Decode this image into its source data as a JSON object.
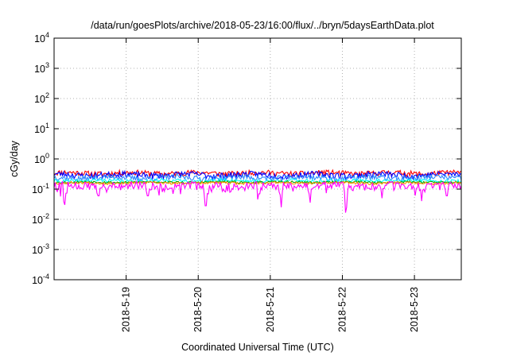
{
  "chart_data": {
    "type": "line",
    "title": "/data/run/goesPlots/archive/2018-05-23/16:00/flux/../bryn/5daysEarthData.plot",
    "xlabel": "Coordinated Universal Time (UTC)",
    "ylabel": "cGy/day",
    "yscale": "log",
    "ylim": [
      0.0001,
      10000
    ],
    "y_ticks": [
      {
        "value": 0.0001,
        "base": "10",
        "exp": "-4"
      },
      {
        "value": 0.001,
        "base": "10",
        "exp": "-3"
      },
      {
        "value": 0.01,
        "base": "10",
        "exp": "-2"
      },
      {
        "value": 0.1,
        "base": "10",
        "exp": "-1"
      },
      {
        "value": 1,
        "base": "10",
        "exp": "0"
      },
      {
        "value": 10,
        "base": "10",
        "exp": "1"
      },
      {
        "value": 100,
        "base": "10",
        "exp": "2"
      },
      {
        "value": 1000,
        "base": "10",
        "exp": "3"
      },
      {
        "value": 10000,
        "base": "10",
        "exp": "4"
      }
    ],
    "x_range_days": [
      18.0,
      23.65
    ],
    "x_ticks": [
      {
        "day": 19,
        "label": "2018-5-19"
      },
      {
        "day": 20,
        "label": "2018-5-20"
      },
      {
        "day": 21,
        "label": "2018-5-21"
      },
      {
        "day": 22,
        "label": "2018-5-22"
      },
      {
        "day": 23,
        "label": "2018-5-23"
      }
    ],
    "grid": true,
    "legend": "none",
    "series": [
      {
        "color": "#ff0000",
        "baseline": 0.34,
        "spread": 0.07,
        "seed": 11
      },
      {
        "color": "#0000ff",
        "baseline": 0.3,
        "spread": 0.07,
        "seed": 23
      },
      {
        "color": "#2e8bff",
        "baseline": 0.24,
        "spread": 0.05,
        "seed": 37
      },
      {
        "color": "#00ffff",
        "baseline": 0.19,
        "spread": 0.025,
        "seed": 41
      },
      {
        "color": "#00aa00",
        "baseline": 0.17,
        "spread": 0.015,
        "seed": 53
      },
      {
        "color": "#ff8c00",
        "baseline": 0.16,
        "spread": 0.015,
        "seed": 67
      },
      {
        "color": "#ff00ff",
        "baseline": 0.13,
        "spread": 0.04,
        "seed": 79,
        "dips": [
          {
            "day": 18.15,
            "value": 0.03
          },
          {
            "day": 18.62,
            "value": 0.06
          },
          {
            "day": 19.3,
            "value": 0.06
          },
          {
            "day": 19.65,
            "value": 0.07
          },
          {
            "day": 20.1,
            "value": 0.028
          },
          {
            "day": 20.85,
            "value": 0.07
          },
          {
            "day": 21.15,
            "value": 0.025
          },
          {
            "day": 21.55,
            "value": 0.07
          },
          {
            "day": 22.05,
            "value": 0.025
          },
          {
            "day": 22.55,
            "value": 0.05
          },
          {
            "day": 23.1,
            "value": 0.04
          },
          {
            "day": 23.45,
            "value": 0.06
          }
        ]
      }
    ]
  }
}
